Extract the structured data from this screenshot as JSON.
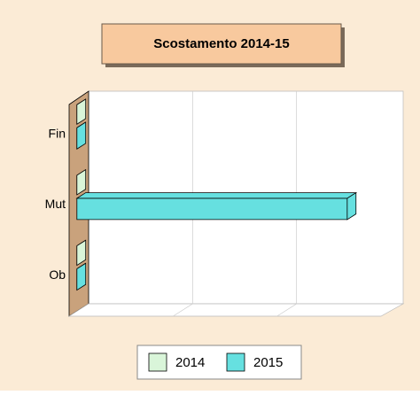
{
  "chart_data": {
    "type": "bar3d_horizontal",
    "title": "Scostamento 2014-15",
    "categories": [
      "Fin",
      "Mut",
      "Ob"
    ],
    "series": [
      {
        "name": "2014",
        "color": "#d9f5d9",
        "values": [
          0,
          0,
          0
        ]
      },
      {
        "name": "2015",
        "color": "#66e0e0",
        "values": [
          0,
          2.6,
          0
        ]
      }
    ],
    "xlim": [
      0,
      3
    ],
    "xticks": [
      1,
      2
    ],
    "grid": true
  }
}
